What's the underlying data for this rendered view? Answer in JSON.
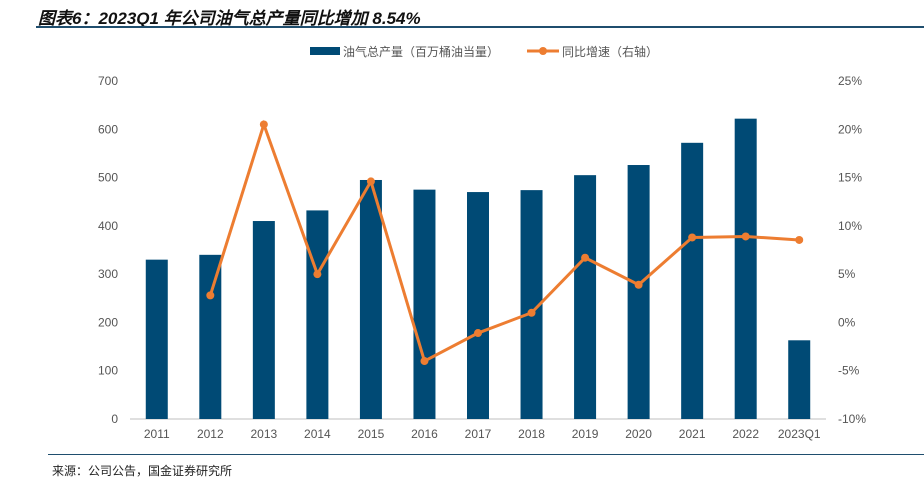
{
  "title": "图表6：2023Q1 年公司油气总产量同比增加 8.54%",
  "source": "来源：公司公告，国金证券研究所",
  "chart_data": {
    "type": "bar+line",
    "categories": [
      "2011",
      "2012",
      "2013",
      "2014",
      "2015",
      "2016",
      "2017",
      "2018",
      "2019",
      "2020",
      "2021",
      "2022",
      "2023Q1"
    ],
    "series": [
      {
        "name": "油气总产量（百万桶油当量）",
        "type": "bar",
        "axis": "left",
        "color": "#004a75",
        "values": [
          330,
          340,
          410,
          432,
          495,
          475,
          470,
          474,
          505,
          526,
          572,
          622,
          163
        ]
      },
      {
        "name": "同比增速（右轴）",
        "type": "line",
        "axis": "right",
        "color": "#ed7d31",
        "values": [
          null,
          2.8,
          20.5,
          5.0,
          14.6,
          -4.0,
          -1.1,
          1.0,
          6.7,
          3.9,
          8.8,
          8.9,
          8.54
        ]
      }
    ],
    "left_axis": {
      "range": [
        0,
        700
      ],
      "ticks": [
        "0",
        "100",
        "200",
        "300",
        "400",
        "500",
        "600",
        "700"
      ]
    },
    "right_axis": {
      "range": [
        -10,
        25
      ],
      "ticks": [
        "-10%",
        "-5%",
        "0%",
        "5%",
        "10%",
        "15%",
        "20%",
        "25%"
      ]
    },
    "legend_position": "top-center",
    "grid": false
  }
}
